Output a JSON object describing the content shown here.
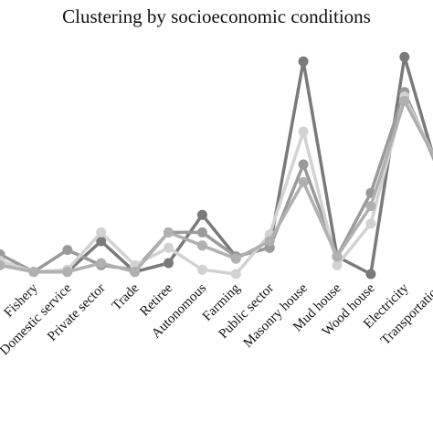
{
  "chart_data": {
    "type": "line",
    "title": "Clustering by socioeconomic conditions",
    "categories": [
      null,
      "Fishery",
      "Domestic service",
      "Private sector",
      "Trade",
      "Retiree",
      "Autonomous",
      "Farming",
      "Public sector",
      "Masonry house",
      "Mud house",
      "Wood house",
      "Electricity",
      "Transportation"
    ],
    "ylim": [
      0,
      1
    ],
    "grid": false,
    "series": [
      {
        "color": "#7a7a7a",
        "values": [
          0.06,
          0.01,
          0.01,
          0.15,
          0.01,
          0.05,
          0.27,
          0.08,
          0.12,
          0.97,
          0.08,
          0,
          0.99,
          0.46
        ]
      },
      {
        "color": "#9a9a9a",
        "values": [
          0.09,
          0.01,
          0.11,
          0.04,
          0.02,
          0.19,
          0.19,
          0.08,
          0.12,
          0.5,
          0.08,
          0.37,
          0.83,
          0.48
        ]
      },
      {
        "color": "#d2d2d2",
        "values": [
          0.06,
          0.01,
          0.02,
          0.19,
          0.04,
          0.12,
          0.02,
          0,
          0.18,
          0.65,
          0.04,
          0.23,
          0.81,
          0.5
        ]
      },
      {
        "color": "#b0b0b0",
        "values": [
          0.04,
          0.01,
          0.01,
          0.05,
          0.01,
          0.19,
          0.13,
          0.07,
          0.15,
          0.42,
          0.08,
          0.31,
          0.79,
          0.5
        ]
      }
    ]
  }
}
